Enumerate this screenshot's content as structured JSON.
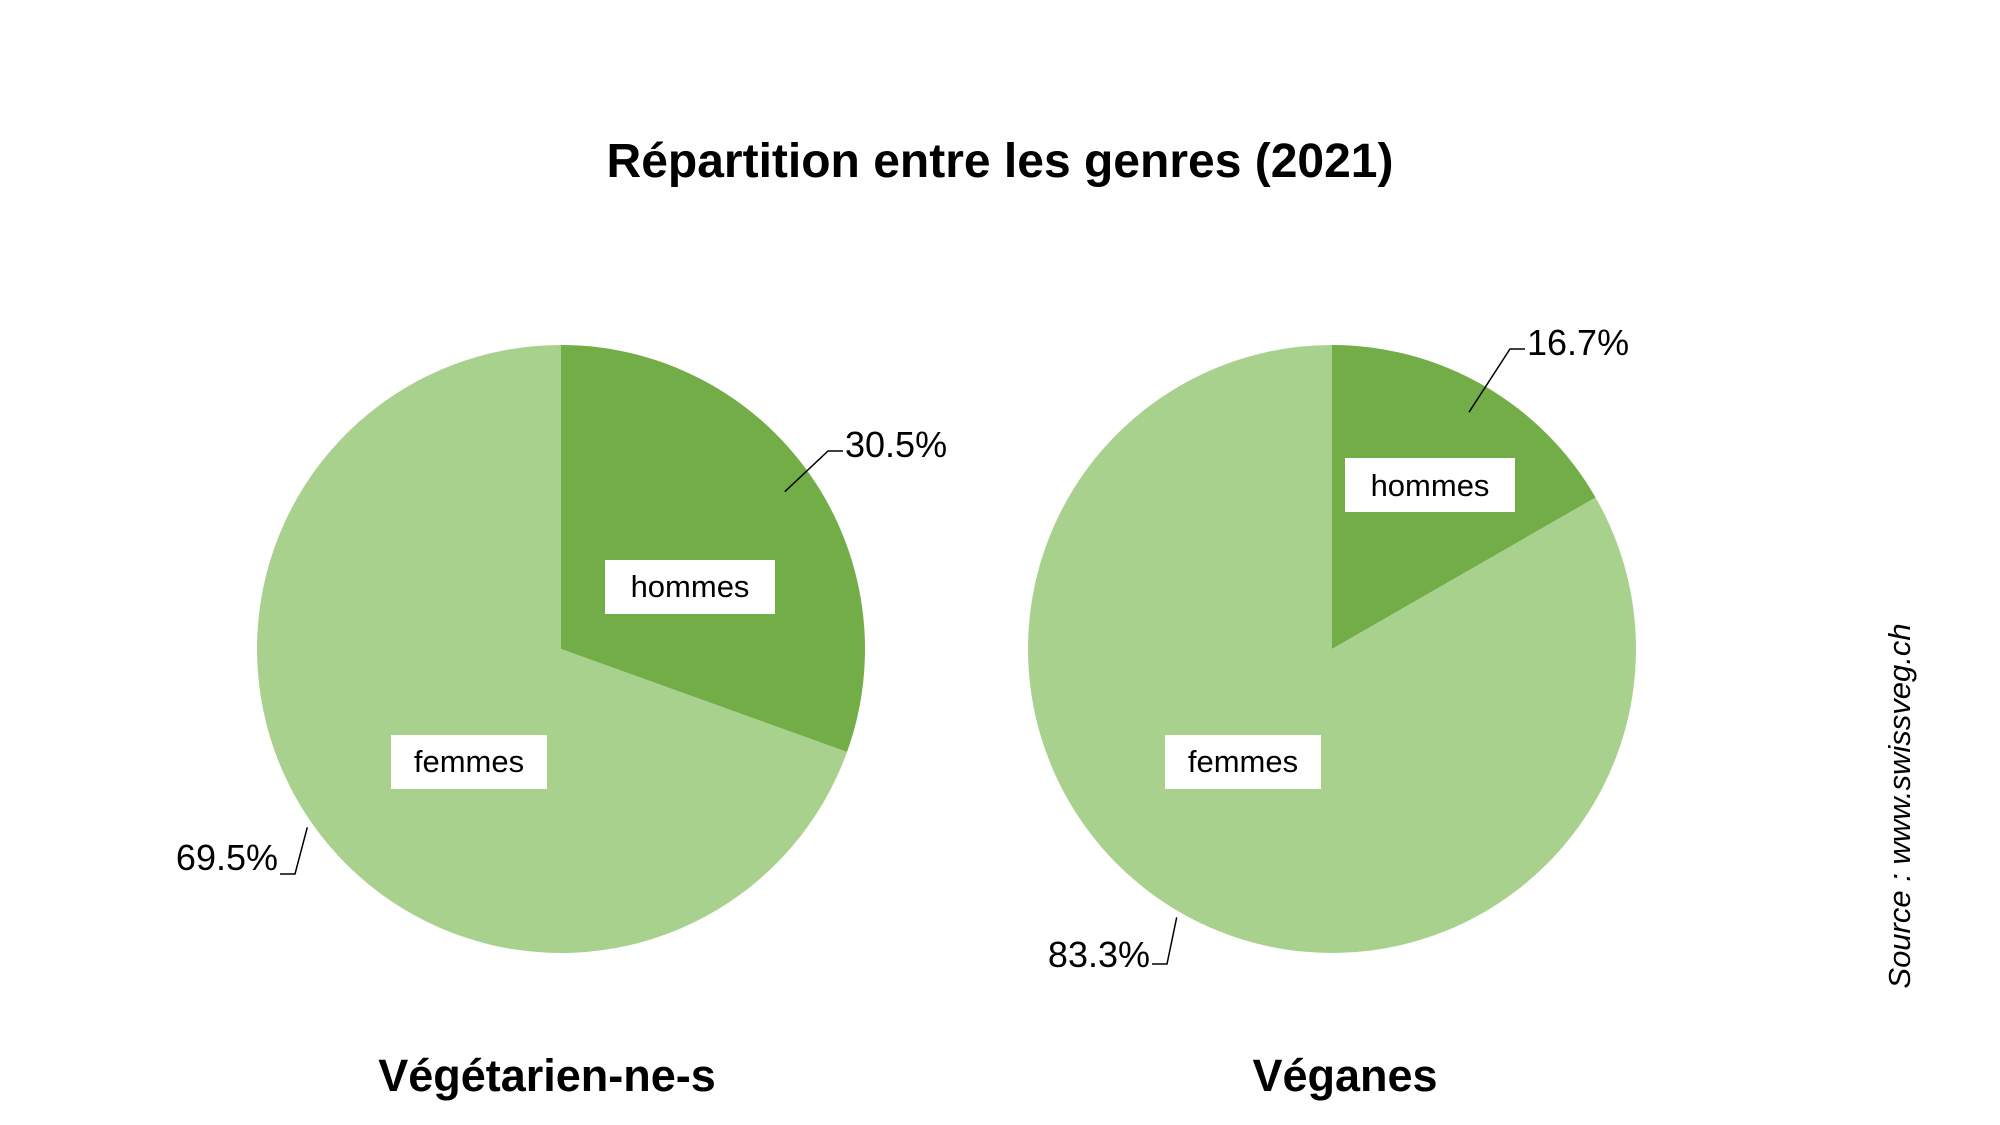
{
  "title": "Répartition entre les genres (2021)",
  "source": "Source : www.swissveg.ch",
  "colors": {
    "hommes": "#72ad47",
    "femmes": "#a9d18e"
  },
  "chart_data": [
    {
      "type": "pie",
      "subtitle": "Végétarien-ne-s",
      "slices": [
        {
          "category": "hommes",
          "value": 30.5,
          "label": "30.5%"
        },
        {
          "category": "femmes",
          "value": 69.5,
          "label": "69.5%"
        }
      ]
    },
    {
      "type": "pie",
      "subtitle": "Véganes",
      "slices": [
        {
          "category": "hommes",
          "value": 16.7,
          "label": "16.7%"
        },
        {
          "category": "femmes",
          "value": 83.3,
          "label": "83.3%"
        }
      ]
    }
  ]
}
